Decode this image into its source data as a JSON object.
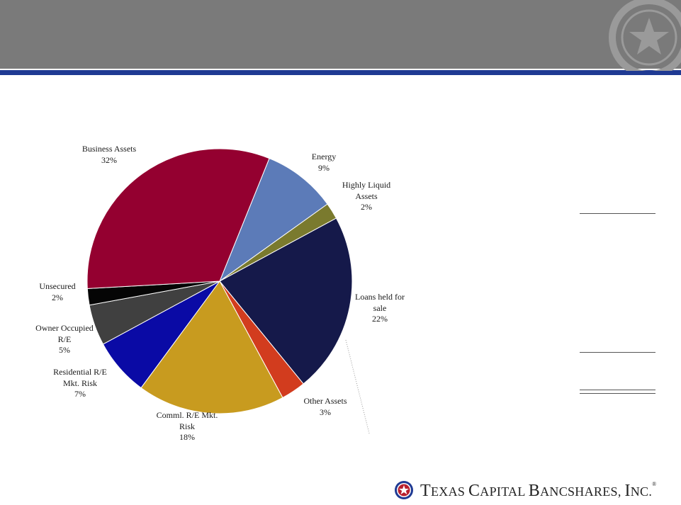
{
  "header": {
    "title": ""
  },
  "chart_data": {
    "type": "pie",
    "title": "",
    "slices": [
      {
        "label": "Energy",
        "value": 9,
        "display": "9%",
        "color": "#5c7bb8"
      },
      {
        "label": "Highly Liquid Assets",
        "value": 2,
        "display": "2%",
        "color": "#7a7a2e"
      },
      {
        "label": "Loans held for sale",
        "value": 22,
        "display": "22%",
        "color": "#15194a"
      },
      {
        "label": "Other Assets",
        "value": 3,
        "display": "3%",
        "color": "#d23c1e"
      },
      {
        "label": "Comml.  R/E Mkt. Risk",
        "value": 18,
        "display": "18%",
        "color": "#c89b1f"
      },
      {
        "label": "Residential R/E Mkt. Risk",
        "value": 7,
        "display": "7%",
        "color": "#0a0aa5"
      },
      {
        "label": "Owner Occupied R/E",
        "value": 5,
        "display": "5%",
        "color": "#404040"
      },
      {
        "label": "Unsecured",
        "value": 2,
        "display": "2%",
        "color": "#050505"
      },
      {
        "label": "Business Assets",
        "value": 32,
        "display": "32%",
        "color": "#940030"
      }
    ]
  },
  "labels": {
    "business_assets": {
      "name": "Business Assets",
      "pct": "32%"
    },
    "energy": {
      "name": "Energy",
      "pct": "9%"
    },
    "highly_liquid": {
      "line1": "Highly Liquid",
      "line2": "Assets",
      "pct": "2%"
    },
    "loans_hfs": {
      "line1": "Loans held for",
      "line2": "sale",
      "pct": "22%"
    },
    "other_assets": {
      "name": "Other Assets",
      "pct": "3%"
    },
    "comml_re": {
      "line1": "Comml.  R/E Mkt.",
      "line2": "Risk",
      "pct": "18%"
    },
    "residential_re": {
      "line1": "Residential R/E",
      "line2": "Mkt. Risk",
      "pct": "7%"
    },
    "owner_occupied": {
      "line1": "Owner Occupied",
      "line2": "R/E",
      "pct": "5%"
    },
    "unsecured": {
      "name": "Unsecured",
      "pct": "2%"
    }
  },
  "logo": {
    "t1": "T",
    "w1": "EXAS ",
    "t2": "C",
    "w2": "APITAL ",
    "t3": "B",
    "w3": "ANCSHARES",
    "comma": ", ",
    "t4": "I",
    "w4": "NC.",
    "reg": "®"
  },
  "colors": {
    "header": "#7a7a7a",
    "accent_blue": "#1f3a93"
  }
}
